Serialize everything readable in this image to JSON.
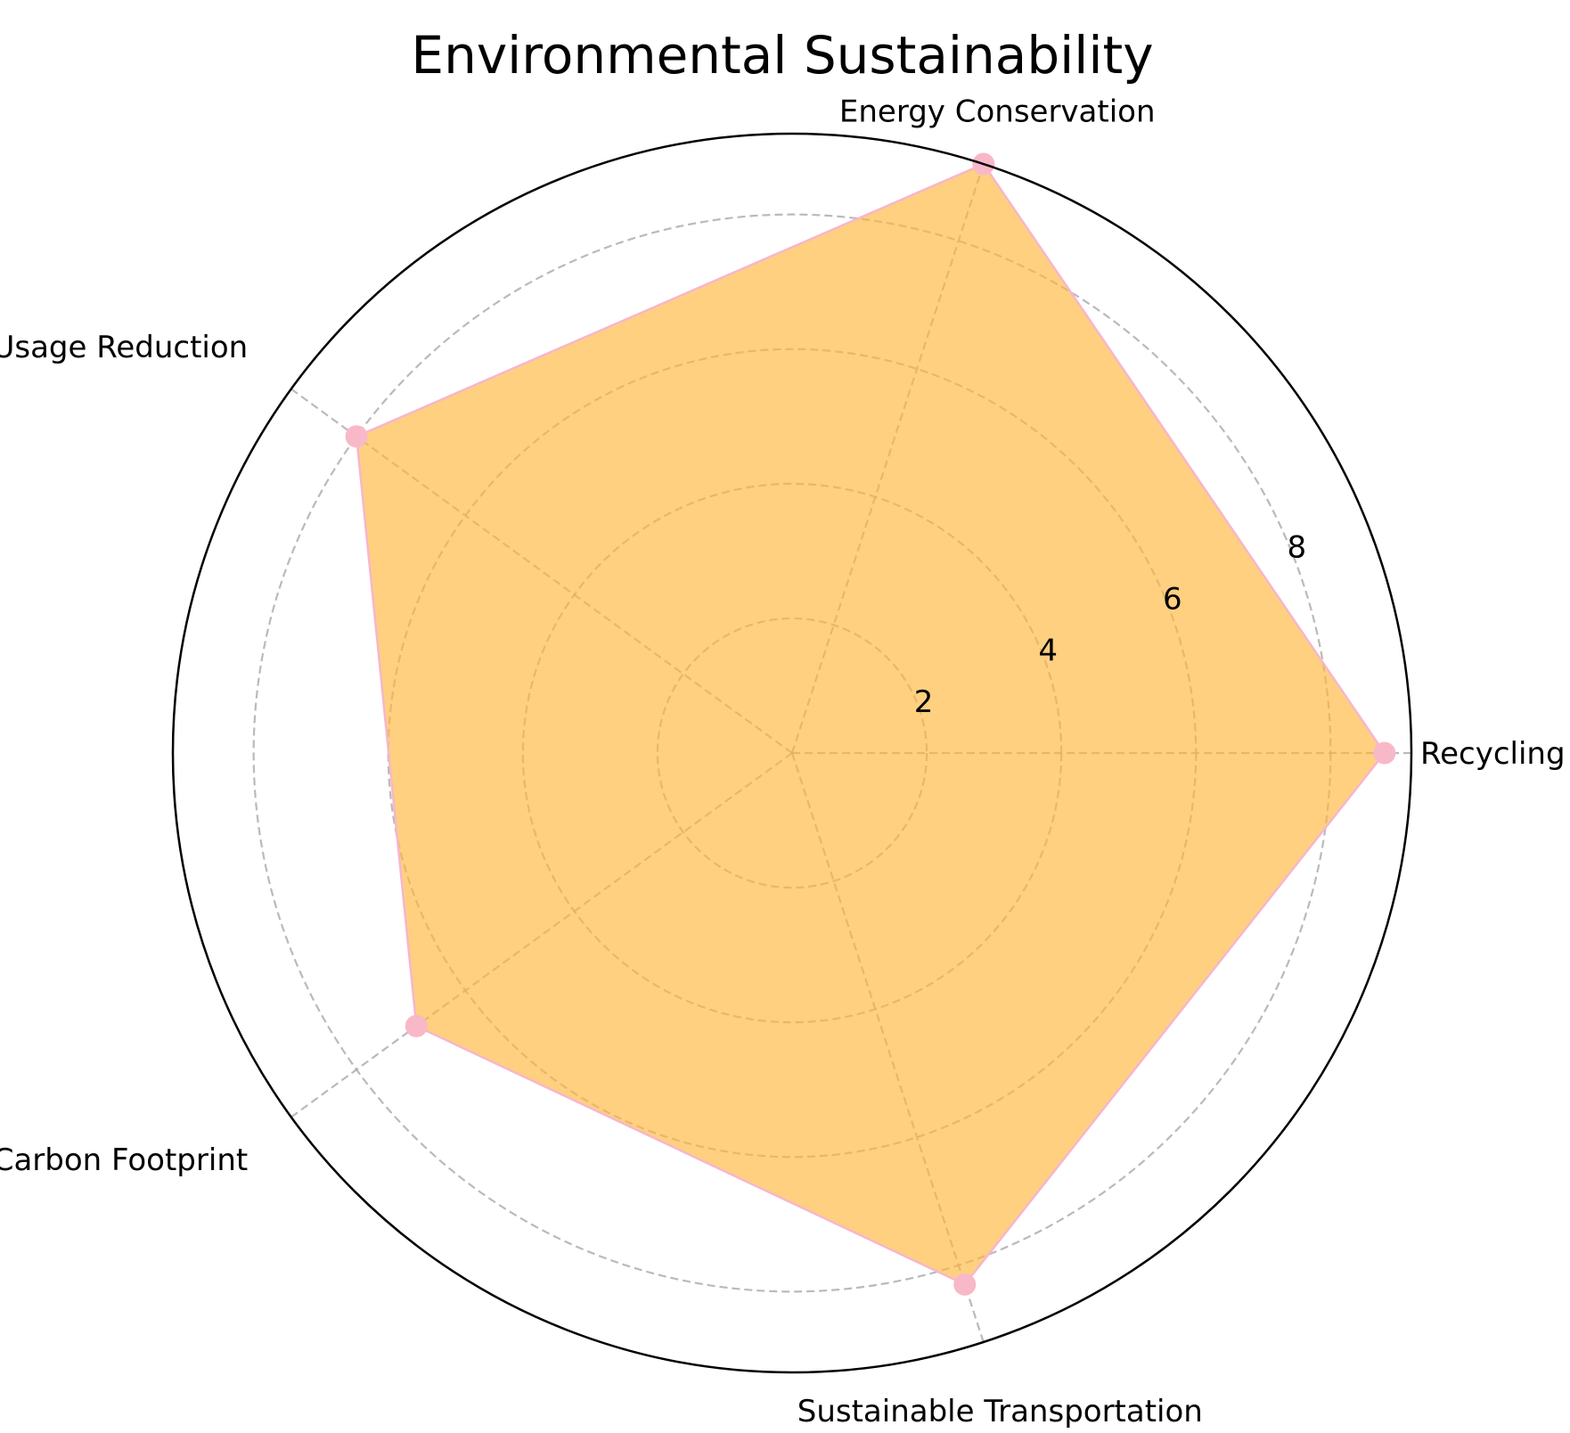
{
  "chart_data": {
    "type": "radar",
    "title": "Environmental Sustainability",
    "categories": [
      "Recycling",
      "Energy Conservation",
      "Water Usage Reduction",
      "Carbon Footprint",
      "Sustainable Transportation"
    ],
    "series": [
      {
        "values": [
          8.8,
          9.2,
          8.0,
          6.9,
          8.3
        ]
      }
    ],
    "radial_ticks": [
      "2",
      "4",
      "6",
      "8"
    ],
    "radial_tick_values": [
      2,
      4,
      6,
      8
    ],
    "rlim": [
      0,
      9.2
    ],
    "grid": true,
    "legend": "none",
    "colors": {
      "fill": "#fdb73c",
      "fill_opacity": 0.65,
      "line": "#f7b6cc",
      "marker": "#f8b8c8",
      "grid": "#a9a9a9",
      "frame": "#000000"
    }
  }
}
